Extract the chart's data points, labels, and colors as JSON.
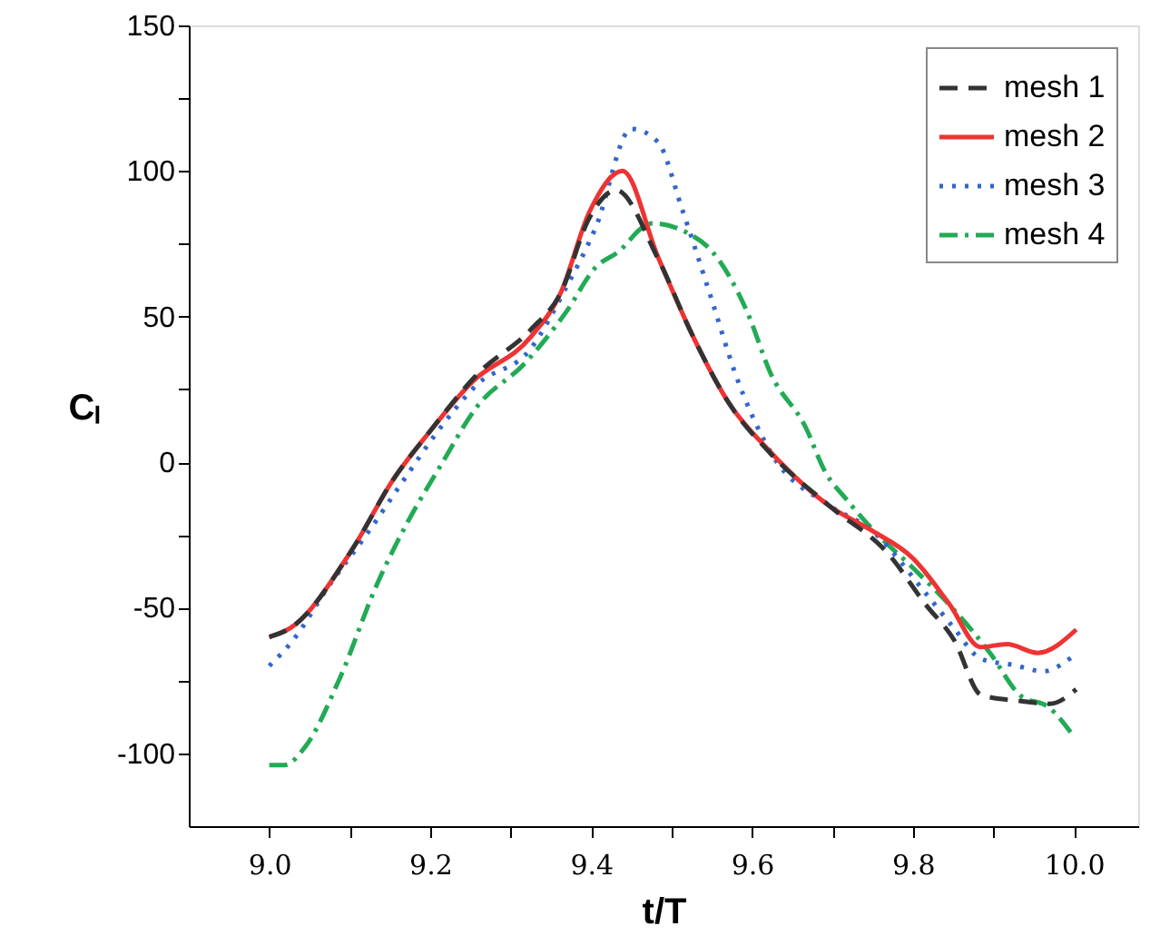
{
  "chart_data": {
    "type": "line",
    "xlabel": "t/T",
    "ylabel": "Cₗ",
    "xlim": [
      8.9,
      10.08
    ],
    "ylim": [
      -125,
      150
    ],
    "xticks": [
      {
        "value": 9.0,
        "label": "9.0"
      },
      {
        "value": 9.1,
        "label": null
      },
      {
        "value": 9.2,
        "label": "9.2"
      },
      {
        "value": 9.3,
        "label": null
      },
      {
        "value": 9.4,
        "label": "9.4"
      },
      {
        "value": 9.5,
        "label": null
      },
      {
        "value": 9.6,
        "label": "9.6"
      },
      {
        "value": 9.7,
        "label": null
      },
      {
        "value": 9.8,
        "label": "9.8"
      },
      {
        "value": 9.9,
        "label": null
      },
      {
        "value": 10.0,
        "label": "10.0"
      }
    ],
    "yticks": [
      -100,
      {
        "value": -75,
        "label": null
      },
      -50,
      {
        "value": -25,
        "label": null
      },
      0,
      {
        "value": 25,
        "label": null
      },
      50,
      {
        "value": 75,
        "label": null
      },
      100,
      {
        "value": 125,
        "label": null
      },
      150
    ],
    "grid": false,
    "legend": "top right",
    "marker": "none",
    "series": [
      {
        "name": "mesh 1",
        "color": "#333333",
        "line_style": "dashed",
        "x": [
          9.0,
          9.026,
          9.103,
          9.154,
          9.198,
          9.26,
          9.325,
          9.362,
          9.398,
          9.431,
          9.483,
          9.527,
          9.572,
          9.623,
          9.696,
          9.771,
          9.815,
          9.851,
          9.885,
          9.933,
          9.97,
          10.003
        ],
        "values": [
          -60,
          -57,
          -30,
          -6,
          10,
          30.6,
          45.5,
          58,
          84,
          93.4,
          70,
          43,
          20,
          3,
          -15,
          -32,
          -48.6,
          -61,
          -80,
          -82,
          -83,
          -78
        ]
      },
      {
        "name": "mesh 2",
        "color": "#ee3333",
        "line_style": "solid",
        "x": [
          9.0,
          9.026,
          9.103,
          9.154,
          9.198,
          9.252,
          9.325,
          9.362,
          9.398,
          9.439,
          9.483,
          9.527,
          9.572,
          9.623,
          9.696,
          9.749,
          9.8,
          9.845,
          9.884,
          9.917,
          9.955,
          10.003
        ],
        "values": [
          -60,
          -57,
          -30,
          -6,
          10,
          27.5,
          43,
          58,
          86,
          100,
          70.6,
          43,
          20,
          3.5,
          -15,
          -23.5,
          -33,
          -48.6,
          -63.5,
          -62.5,
          -65.5,
          -57.5
        ]
      },
      {
        "name": "mesh 3",
        "color": "#3366cc",
        "line_style": "dotted",
        "x": [
          9.0,
          9.03,
          9.074,
          9.118,
          9.165,
          9.207,
          9.258,
          9.325,
          9.369,
          9.406,
          9.45,
          9.483,
          9.513,
          9.55,
          9.579,
          9.623,
          9.697,
          9.749,
          9.815,
          9.851,
          9.885,
          9.926,
          9.962,
          9.999
        ],
        "values": [
          -70,
          -61,
          -42.5,
          -26,
          -7,
          9.7,
          26.6,
          39,
          60,
          80.8,
          114.5,
          110,
          87,
          55.7,
          30.6,
          3.5,
          -15,
          -23.5,
          -44.7,
          -57,
          -67.6,
          -69.7,
          -71.8,
          -66.6
        ]
      },
      {
        "name": "mesh 4",
        "color": "#22aa55",
        "line_style": "dashdot",
        "x": [
          9.0,
          9.019,
          9.044,
          9.088,
          9.133,
          9.17,
          9.214,
          9.258,
          9.317,
          9.369,
          9.406,
          9.435,
          9.465,
          9.476,
          9.52,
          9.55,
          9.594,
          9.623,
          9.667,
          9.69,
          9.719,
          9.752,
          9.8,
          9.852,
          9.896,
          9.933,
          9.97,
          9.996
        ],
        "values": [
          -104,
          -104,
          -98,
          -74,
          -42.5,
          -21.6,
          -0.7,
          19,
          33.8,
          51.6,
          67,
          72.5,
          80.8,
          82,
          78.7,
          72.5,
          51.6,
          30.6,
          11.8,
          -2.8,
          -13.3,
          -23.7,
          -36.3,
          -51,
          -65.6,
          -80,
          -84.4,
          -92.7
        ]
      }
    ]
  }
}
